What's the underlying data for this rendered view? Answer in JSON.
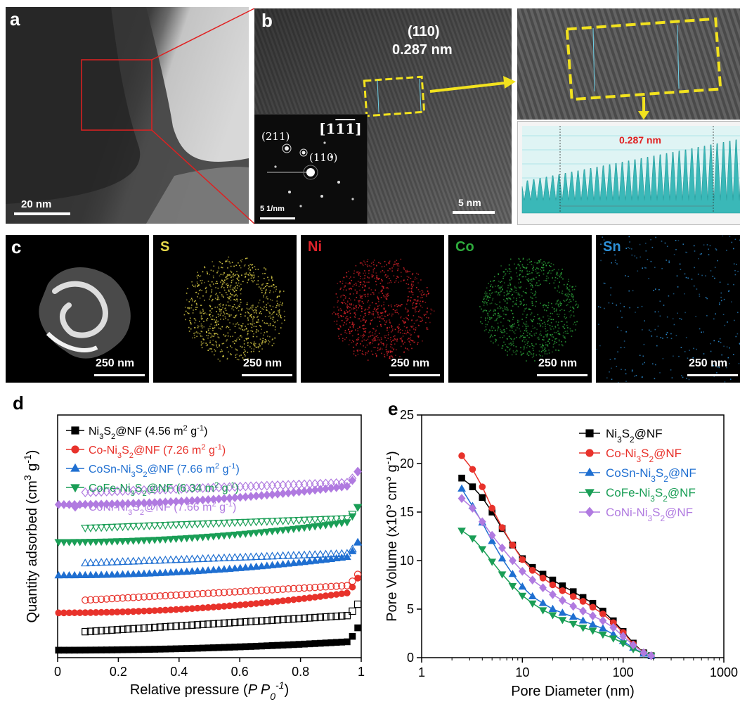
{
  "panel_a": {
    "label": "a",
    "scalebar": "20 nm"
  },
  "panel_b": {
    "label": "b",
    "plane": "(110)",
    "spacing": "0.287 nm",
    "scalebar": "5 nm",
    "saed": {
      "zone_axis": "[1̅1̅̅]",
      "zone_text": "[11̅1̅]",
      "spot1": "(211)",
      "spot2": "(110)",
      "scalebar": "5 1/nm"
    }
  },
  "panel_b_right": {
    "profile_label": "0.287 nm"
  },
  "panel_c": {
    "label": "c",
    "maps": [
      {
        "element": "",
        "scalebar": "250 nm",
        "color": "#ffffff"
      },
      {
        "element": "S",
        "scalebar": "250 nm",
        "color": "#e6d84a"
      },
      {
        "element": "Ni",
        "scalebar": "250 nm",
        "color": "#e0232b"
      },
      {
        "element": "Co",
        "scalebar": "250 nm",
        "color": "#2eaa3c"
      },
      {
        "element": "Sn",
        "scalebar": "250 nm",
        "color": "#2d8fd6"
      }
    ]
  },
  "chart_data": [
    {
      "type": "scatter",
      "panel": "d",
      "title": "",
      "xlabel": "Relative pressure (P P0-1)",
      "ylabel": "Quantity adsorbed (cm3 g-1)",
      "xlim": [
        0,
        1
      ],
      "xticks": [
        "0",
        "0.2",
        "0.4",
        "0.6",
        "0.8",
        "1"
      ],
      "legend_position": "top-left",
      "series": [
        {
          "name": "Ni3S2@NF (4.56 m2 g-1)",
          "color": "#000000",
          "marker": "square",
          "ads_base": 0.0,
          "ads_rise": 0.55,
          "des_base": 0.9,
          "des_rise": 1.0
        },
        {
          "name": "Co-Ni3S2@NF (7.26 m2 g-1)",
          "color": "#e8322b",
          "marker": "circle",
          "ads_base": 2.0,
          "ads_rise": 1.3,
          "des_base": 2.6,
          "des_rise": 0.9
        },
        {
          "name": "CoSn-Ni3S2@NF (7.66 m2 g-1)",
          "color": "#1f6fd1",
          "marker": "triangle",
          "ads_base": 4.0,
          "ads_rise": 1.2,
          "des_base": 4.6,
          "des_rise": 0.6
        },
        {
          "name": "CoFe-Ni3S2@NF (6.34 m2 g-1)",
          "color": "#1a9e56",
          "marker": "triangle-down",
          "ads_base": 5.8,
          "ads_rise": 1.3,
          "des_base": 6.5,
          "des_rise": 0.6
        },
        {
          "name": "CoNi-Ni3S2@NF (7.66 m2 g-1)",
          "color": "#b07ae0",
          "marker": "diamond",
          "ads_base": 7.8,
          "ads_rise": 1.2,
          "des_base": 8.4,
          "des_rise": 0.6
        }
      ]
    },
    {
      "type": "line",
      "panel": "e",
      "title": "",
      "xlabel": "Pore Diameter (nm)",
      "ylabel": "Pore Volume (x10³ cm³ g⁻¹)",
      "xscale": "log",
      "xlim": [
        1,
        1000
      ],
      "ylim": [
        0,
        25
      ],
      "xticks": [
        1,
        10,
        100,
        1000
      ],
      "yticks": [
        0,
        5,
        10,
        15,
        20,
        25
      ],
      "legend_position": "top-right",
      "x": [
        2.5,
        3.2,
        4.0,
        5.0,
        6.3,
        8.0,
        10,
        12.6,
        16,
        20,
        25,
        32,
        40,
        50,
        63,
        80,
        100,
        126,
        160,
        190
      ],
      "series": [
        {
          "name": "Ni3S2@NF",
          "color": "#000000",
          "marker": "square",
          "values": [
            18.5,
            17.6,
            16.5,
            15.0,
            13.3,
            11.6,
            10.2,
            9.3,
            8.6,
            8.0,
            7.4,
            6.8,
            6.2,
            5.6,
            4.8,
            3.8,
            2.7,
            1.5,
            0.5,
            0.2
          ]
        },
        {
          "name": "Co-Ni3S2@NF",
          "color": "#e8322b",
          "marker": "circle",
          "values": [
            20.8,
            19.4,
            17.6,
            15.4,
            13.4,
            11.6,
            10.1,
            9.0,
            8.2,
            7.5,
            6.9,
            6.3,
            5.8,
            5.2,
            4.5,
            3.6,
            2.6,
            1.4,
            0.5,
            0.2
          ]
        },
        {
          "name": "CoSn-Ni3S2@NF",
          "color": "#1f6fd1",
          "marker": "triangle",
          "values": [
            17.4,
            15.6,
            13.9,
            12.0,
            10.2,
            8.6,
            7.3,
            6.3,
            5.6,
            5.0,
            4.6,
            4.2,
            3.8,
            3.4,
            3.0,
            2.4,
            1.7,
            1.0,
            0.4,
            0.2
          ]
        },
        {
          "name": "CoFe-Ni3S2@NF",
          "color": "#1a9e56",
          "marker": "triangle-down",
          "values": [
            13.1,
            12.3,
            11.2,
            9.9,
            8.6,
            7.4,
            6.4,
            5.6,
            4.9,
            4.4,
            3.9,
            3.5,
            3.1,
            2.8,
            2.4,
            2.0,
            1.5,
            0.9,
            0.4,
            0.2
          ]
        },
        {
          "name": "CoNi-Ni3S2@NF",
          "color": "#b07ae0",
          "marker": "diamond",
          "values": [
            16.4,
            15.4,
            14.0,
            12.6,
            11.3,
            10.0,
            8.9,
            8.0,
            7.2,
            6.5,
            5.9,
            5.3,
            4.8,
            4.3,
            3.8,
            3.1,
            2.2,
            1.3,
            0.5,
            0.2
          ]
        }
      ]
    }
  ]
}
